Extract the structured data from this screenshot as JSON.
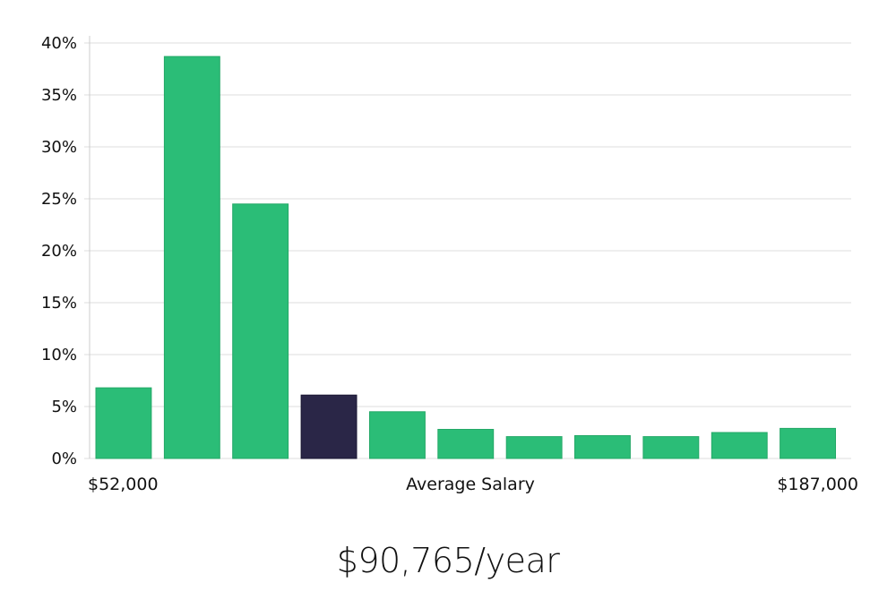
{
  "chart_data": {
    "type": "bar",
    "values": [
      6.8,
      38.7,
      24.5,
      6.1,
      4.5,
      2.8,
      2.1,
      2.2,
      2.1,
      2.5,
      2.9
    ],
    "highlight_index": 3,
    "ylim": [
      0,
      40
    ],
    "yticks": [
      0,
      5,
      10,
      15,
      20,
      25,
      30,
      35,
      40
    ],
    "ytick_labels": [
      "0%",
      "5%",
      "10%",
      "15%",
      "20%",
      "25%",
      "30%",
      "35%",
      "40%"
    ],
    "x_min_label": "$52,000",
    "x_max_label": "$187,000",
    "xlabel": "Average Salary",
    "grid": true
  },
  "colors": {
    "bar": "#2bbd77",
    "highlight": "#2a2647",
    "grid": "#dddddd",
    "axis": "#cccccc"
  },
  "headline": "$90,765/year"
}
